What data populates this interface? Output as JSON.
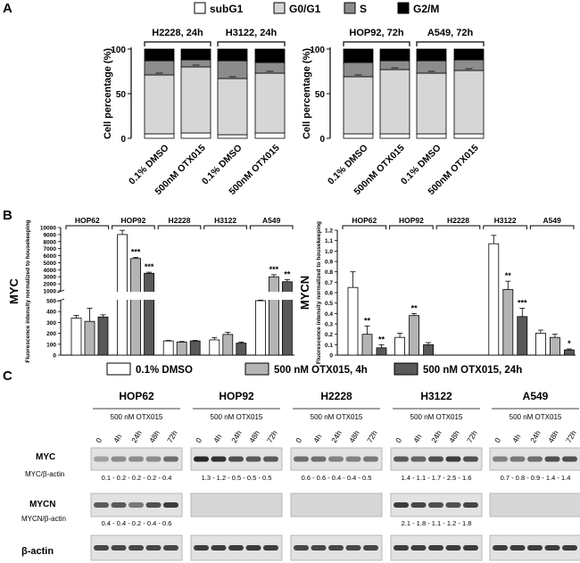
{
  "panels": {
    "a": "A",
    "b": "B",
    "c": "C"
  },
  "legend_cell_cycle": [
    {
      "label": "subG1",
      "color": "#ffffff"
    },
    {
      "label": "G0/G1",
      "color": "#d6d6d6"
    },
    {
      "label": "S",
      "color": "#8c8c8c"
    },
    {
      "label": "G2/M",
      "color": "#000000"
    }
  ],
  "legend_treatment": [
    {
      "label": "0.1% DMSO",
      "color": "#ffffff"
    },
    {
      "label": "500 nM OTX015, 4h",
      "color": "#b4b4b4"
    },
    {
      "label": "500 nM OTX015, 24h",
      "color": "#595959"
    }
  ],
  "chart_data": [
    {
      "id": "cell-cycle-24h",
      "type": "bar",
      "stacked": true,
      "title": "",
      "ylabel": "Cell percentage (%)",
      "ylim": [
        0,
        100
      ],
      "yticks": [
        0,
        50,
        100
      ],
      "groups": [
        "H2228, 24h",
        "H3122, 24h"
      ],
      "categories": [
        "0.1% DMSO",
        "500nM OTX015",
        "0.1% DMSO",
        "500nM OTX015"
      ],
      "series": [
        {
          "name": "subG1",
          "values": [
            5,
            6,
            4,
            6
          ]
        },
        {
          "name": "G0/G1",
          "values": [
            66,
            74,
            63,
            67
          ]
        },
        {
          "name": "S",
          "values": [
            16,
            8,
            20,
            12
          ]
        },
        {
          "name": "G2/M",
          "values": [
            13,
            12,
            13,
            15
          ]
        }
      ]
    },
    {
      "id": "cell-cycle-72h",
      "type": "bar",
      "stacked": true,
      "title": "",
      "ylabel": "Cell percentage (%)",
      "ylim": [
        0,
        100
      ],
      "yticks": [
        0,
        50,
        100
      ],
      "groups": [
        "HOP92, 72h",
        "A549, 72h"
      ],
      "categories": [
        "0.1% DMSO",
        "500nM OTX015",
        "0.1% DMSO",
        "500nM OTX015"
      ],
      "series": [
        {
          "name": "subG1",
          "values": [
            5,
            5,
            5,
            5
          ]
        },
        {
          "name": "G0/G1",
          "values": [
            64,
            72,
            68,
            71
          ]
        },
        {
          "name": "S",
          "values": [
            16,
            10,
            14,
            12
          ]
        },
        {
          "name": "G2/M",
          "values": [
            15,
            13,
            13,
            12
          ]
        }
      ]
    },
    {
      "id": "myc-qpcr",
      "type": "bar",
      "ylabel": "MYC",
      "ylabel2": "Fluorescence intensity normalized to housekeeping",
      "groups": [
        "HOP62",
        "HOP92",
        "H2228",
        "H3122",
        "A549"
      ],
      "series_names": [
        "0.1% DMSO",
        "500 nM OTX015, 4h",
        "500 nM OTX015, 24h"
      ],
      "lower_ticks": [
        0,
        100,
        200,
        300,
        400,
        500
      ],
      "upper_ticks": [
        1000,
        2000,
        3000,
        4000,
        5000,
        6000,
        7000,
        8000,
        9000,
        10000
      ],
      "values": [
        [
          340,
          310,
          350
        ],
        [
          9000,
          5600,
          3500
        ],
        [
          130,
          120,
          130
        ],
        [
          140,
          190,
          110
        ],
        [
          500,
          3000,
          2300
        ]
      ],
      "errors": [
        [
          25,
          120,
          20
        ],
        [
          600,
          150,
          150
        ],
        [
          5,
          5,
          5
        ],
        [
          20,
          20,
          10
        ],
        [
          30,
          300,
          300
        ]
      ],
      "significance": [
        [
          "",
          "",
          ""
        ],
        [
          "",
          "***",
          "***"
        ],
        [
          "",
          "",
          ""
        ],
        [
          "",
          "",
          ""
        ],
        [
          "",
          "***",
          "**"
        ]
      ]
    },
    {
      "id": "mycn-qpcr",
      "type": "bar",
      "ylabel": "MYCN",
      "ylabel2": "Fluorescence intensity normalized to housekeeping",
      "groups": [
        "HOP62",
        "HOP92",
        "H2228",
        "H3122",
        "A549"
      ],
      "series_names": [
        "0.1% DMSO",
        "500 nM OTX015, 4h",
        "500 nM OTX015, 24h"
      ],
      "ylim": [
        0,
        1.2
      ],
      "yticks": [
        0,
        0.1,
        0.2,
        0.3,
        0.4,
        0.5,
        0.6,
        0.7,
        0.8,
        0.9,
        1.0,
        1.1,
        1.2
      ],
      "ytick_labels": [
        "0",
        "0.1",
        "0.2",
        "0.3",
        "0.4",
        "0.5",
        "0.6",
        "0.7",
        "0.8",
        "0.9",
        "1.0",
        "1.1",
        "1.2"
      ],
      "values": [
        [
          0.65,
          0.2,
          0.07
        ],
        [
          0.17,
          0.38,
          0.1
        ],
        [
          0,
          0,
          0
        ],
        [
          1.07,
          0.63,
          0.37
        ],
        [
          0.21,
          0.17,
          0.05
        ]
      ],
      "errors": [
        [
          0.15,
          0.08,
          0.03
        ],
        [
          0.04,
          0.02,
          0.02
        ],
        [
          0,
          0,
          0
        ],
        [
          0.08,
          0.08,
          0.08
        ],
        [
          0.03,
          0.03,
          0.01
        ]
      ],
      "significance": [
        [
          "",
          "**",
          "**"
        ],
        [
          "",
          "**",
          ""
        ],
        [
          "",
          "",
          ""
        ],
        [
          "",
          "**",
          "***"
        ],
        [
          "",
          "",
          "*"
        ]
      ]
    }
  ],
  "western": {
    "cell_lines": [
      "HOP62",
      "HOP92",
      "H2228",
      "H3122",
      "A549"
    ],
    "treatment": "500 nM OTX015",
    "timepoints": [
      "0",
      "4h",
      "24h",
      "48h",
      "72h"
    ],
    "rows": {
      "myc": "MYC",
      "myc_ratio": "MYC/β-actin",
      "mycn": "MYCN",
      "mycn_ratio": "MYCN/β-actin",
      "actin": "β-actin"
    },
    "myc_quant": [
      "0.1 - 0.2 - 0.2 - 0.2 - 0.4",
      "1.3 - 1.2 - 0.5 - 0.5 - 0.5",
      "0.6 - 0.6 - 0.4 - 0.4 - 0.5",
      "1.4 - 1.1 - 1.7 - 2.5 - 1.6",
      "0.7 - 0.8 - 0.9 - 1.4 - 1.4"
    ],
    "mycn_quant": [
      "0.4 - 0.4 - 0.2 - 0.4 - 0.6",
      "",
      "",
      "2.1 - 1.8 - 1.1 - 1.2 - 1.8",
      ""
    ],
    "myc_intensity": [
      [
        0.35,
        0.45,
        0.45,
        0.45,
        0.6
      ],
      [
        0.95,
        0.9,
        0.75,
        0.7,
        0.7
      ],
      [
        0.6,
        0.6,
        0.5,
        0.5,
        0.55
      ],
      [
        0.7,
        0.65,
        0.75,
        0.85,
        0.75
      ],
      [
        0.5,
        0.55,
        0.6,
        0.75,
        0.75
      ]
    ],
    "mycn_intensity": [
      [
        0.7,
        0.7,
        0.55,
        0.75,
        0.85
      ],
      [
        0,
        0,
        0,
        0,
        0
      ],
      [
        0,
        0,
        0,
        0,
        0
      ],
      [
        0.85,
        0.8,
        0.75,
        0.75,
        0.8
      ],
      [
        0,
        0,
        0,
        0,
        0
      ]
    ],
    "actin_intensity": [
      0.8,
      0.85,
      0.8,
      0.85,
      0.85
    ]
  }
}
